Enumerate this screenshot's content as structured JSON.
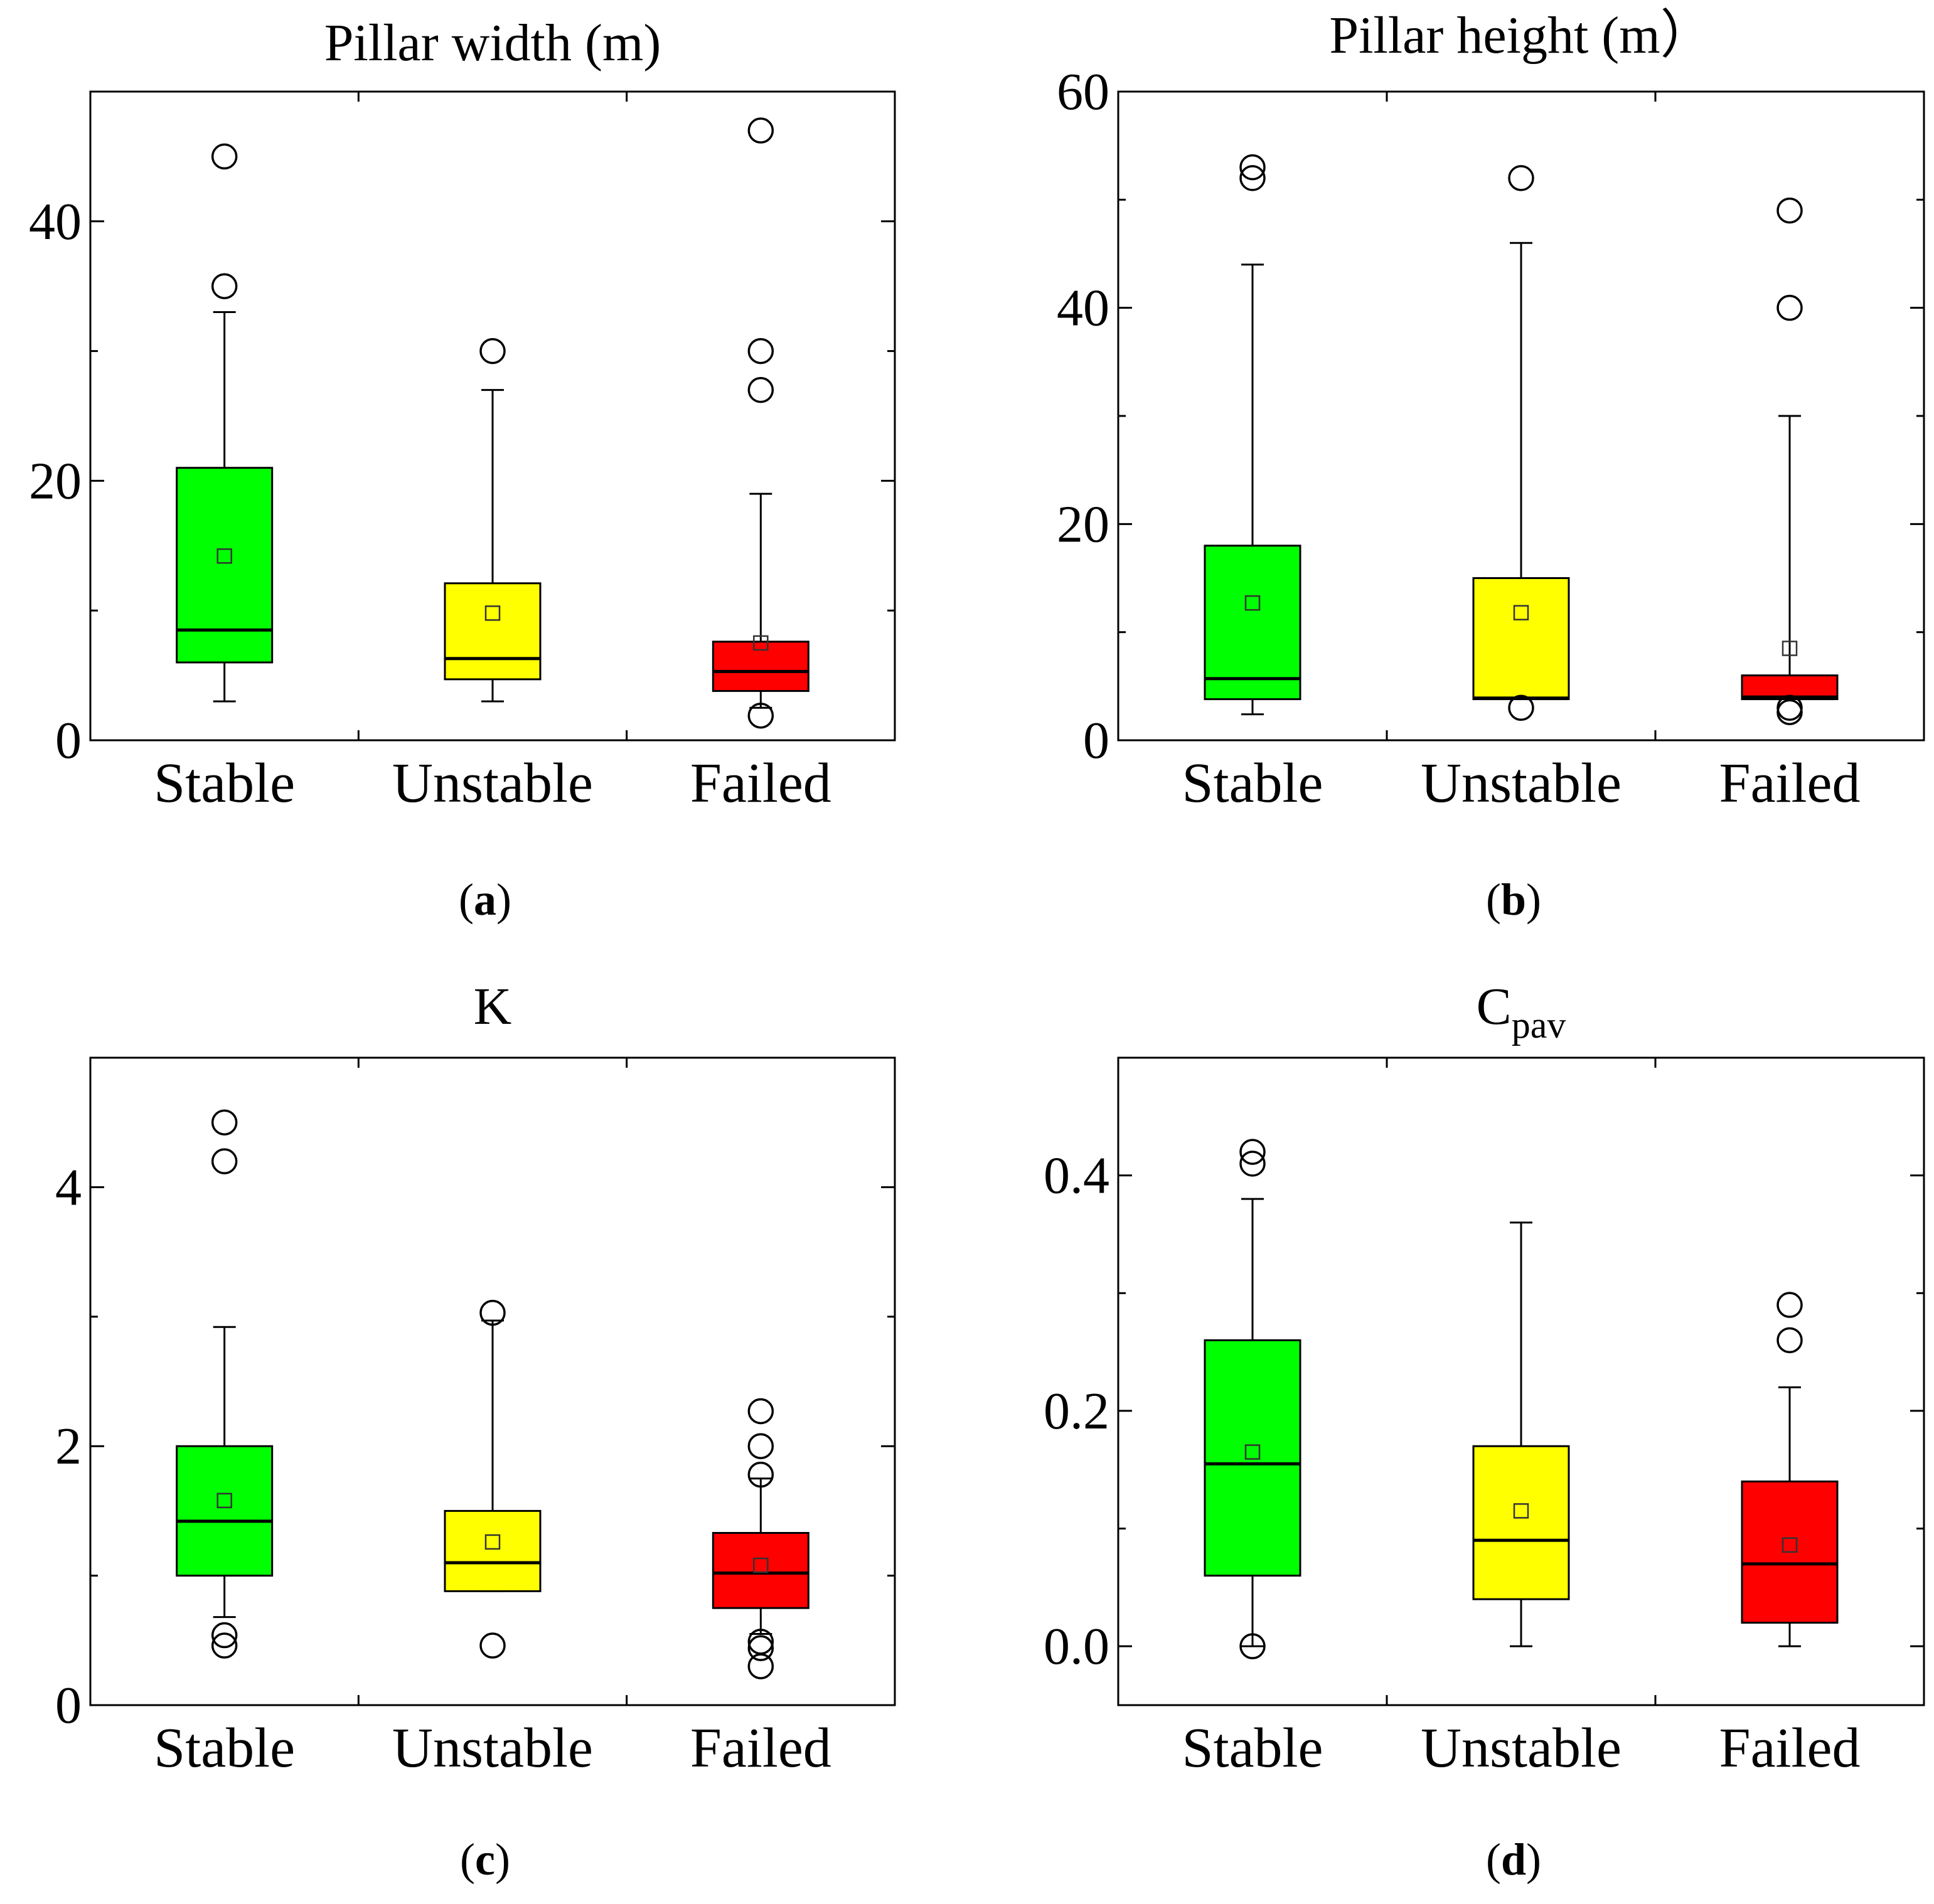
{
  "colors": {
    "Stable": "#00ff00",
    "Unstable": "#ffff00",
    "Failed": "#ff0000"
  },
  "chart_data": [
    {
      "type": "box",
      "title": "Pillar width (m)",
      "panel_label": "a",
      "categories": [
        "Stable",
        "Unstable",
        "Failed"
      ],
      "ylim": [
        0,
        50
      ],
      "yticks": [
        0,
        20,
        40
      ],
      "yticks_minor": [
        10,
        30
      ],
      "boxes": [
        {
          "name": "Stable",
          "whisker_low": 3,
          "q1": 6,
          "median": 8.5,
          "q3": 21,
          "whisker_high": 33,
          "mean": 14.2,
          "outliers": [
            35,
            45
          ]
        },
        {
          "name": "Unstable",
          "whisker_low": 3,
          "q1": 4.7,
          "median": 6.3,
          "q3": 12.1,
          "whisker_high": 27,
          "mean": 9.8,
          "outliers": [
            30
          ]
        },
        {
          "name": "Failed",
          "whisker_low": 2.5,
          "q1": 3.8,
          "median": 5.3,
          "q3": 7.6,
          "whisker_high": 19,
          "mean": 7.5,
          "outliers": [
            1.9,
            27,
            30,
            47
          ]
        }
      ]
    },
    {
      "type": "box",
      "title": "Pillar height (m）",
      "panel_label": "b",
      "categories": [
        "Stable",
        "Unstable",
        "Failed"
      ],
      "ylim": [
        0,
        60
      ],
      "yticks": [
        0,
        20,
        40,
        60
      ],
      "yticks_minor": [
        10,
        30,
        50
      ],
      "boxes": [
        {
          "name": "Stable",
          "whisker_low": 2.4,
          "q1": 3.8,
          "median": 5.7,
          "q3": 18,
          "whisker_high": 44,
          "mean": 12.7,
          "outliers": [
            52,
            53
          ]
        },
        {
          "name": "Unstable",
          "whisker_low": 3.8,
          "q1": 3.8,
          "median": 3.9,
          "q3": 15,
          "whisker_high": 46,
          "mean": 11.8,
          "outliers": [
            3,
            52
          ]
        },
        {
          "name": "Failed",
          "whisker_low": 3.8,
          "q1": 3.8,
          "median": 4,
          "q3": 6,
          "whisker_high": 30,
          "mean": 8.5,
          "outliers": [
            2.6,
            3,
            40,
            49
          ]
        }
      ]
    },
    {
      "type": "box",
      "title": "K",
      "panel_label": "c",
      "categories": [
        "Stable",
        "Unstable",
        "Failed"
      ],
      "ylim": [
        0,
        5
      ],
      "yticks": [
        0,
        2,
        4
      ],
      "yticks_minor": [
        1,
        3,
        5
      ],
      "boxes": [
        {
          "name": "Stable",
          "whisker_low": 0.68,
          "q1": 1,
          "median": 1.42,
          "q3": 2,
          "whisker_high": 2.92,
          "mean": 1.58,
          "outliers": [
            0.46,
            0.54,
            4.2,
            4.5
          ]
        },
        {
          "name": "Unstable",
          "whisker_low": 0.88,
          "q1": 0.88,
          "median": 1.1,
          "q3": 1.5,
          "whisker_high": 2.97,
          "mean": 1.26,
          "outliers": [
            0.46,
            3.03
          ]
        },
        {
          "name": "Failed",
          "whisker_low": 0.55,
          "q1": 0.75,
          "median": 1.02,
          "q3": 1.33,
          "whisker_high": 1.75,
          "mean": 1.08,
          "outliers": [
            0.3,
            0.44,
            0.49,
            1.78,
            2,
            2.27
          ]
        }
      ]
    },
    {
      "type": "box",
      "title": "C",
      "title_subscript": "pav",
      "panel_label": "d",
      "categories": [
        "Stable",
        "Unstable",
        "Failed"
      ],
      "ylim": [
        -0.05,
        0.5
      ],
      "yticks": [
        0,
        0.2,
        0.4
      ],
      "yticks_minor": [
        0.1,
        0.3,
        0.5
      ],
      "tick_decimals": 1,
      "boxes": [
        {
          "name": "Stable",
          "whisker_low": 0,
          "q1": 0.06,
          "median": 0.155,
          "q3": 0.26,
          "whisker_high": 0.38,
          "mean": 0.165,
          "outliers": [
            0,
            0.41,
            0.42
          ]
        },
        {
          "name": "Unstable",
          "whisker_low": 0,
          "q1": 0.04,
          "median": 0.09,
          "q3": 0.17,
          "whisker_high": 0.36,
          "mean": 0.115,
          "outliers": []
        },
        {
          "name": "Failed",
          "whisker_low": 0,
          "q1": 0.02,
          "median": 0.07,
          "q3": 0.14,
          "whisker_high": 0.22,
          "mean": 0.086,
          "outliers": [
            0.26,
            0.29
          ]
        }
      ]
    }
  ]
}
